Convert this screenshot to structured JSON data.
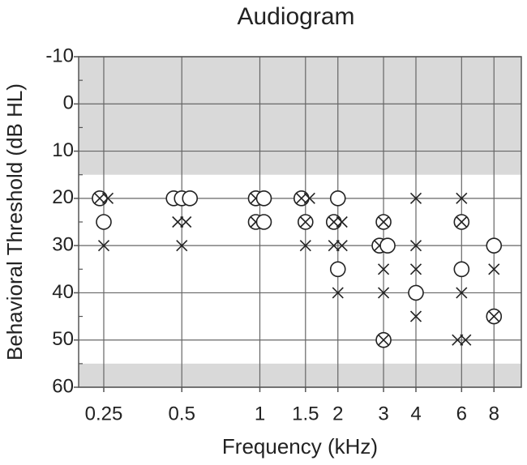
{
  "chart_data": {
    "type": "scatter",
    "title": "Audiogram",
    "x_label": "Frequency (kHz)",
    "y_label": "Behavioral Threshold (dB HL)",
    "xlim": [
      0.2,
      10.2
    ],
    "xscale": "log",
    "xticks": [
      0.25,
      0.5,
      1,
      1.5,
      2,
      3,
      4,
      6,
      8
    ],
    "ylim": [
      -10,
      60
    ],
    "y_inverted": true,
    "yticks": [
      -10,
      0,
      10,
      20,
      30,
      40,
      50,
      60
    ],
    "yminorticks": [
      -5,
      5,
      15,
      25,
      35,
      45,
      55
    ],
    "grid": true,
    "shaded_ranges": [
      [
        -10,
        15
      ],
      [
        55,
        60
      ]
    ],
    "shade_color": "#d9d9d9",
    "series": [
      {
        "marker": "circle-cross",
        "color": "#222222",
        "x": [
          0.25,
          1,
          1,
          1.5,
          1.5,
          2,
          3,
          3,
          3,
          6,
          8
        ],
        "values": [
          20,
          20,
          25,
          20,
          25,
          25,
          25,
          30,
          50,
          25,
          45
        ]
      },
      {
        "marker": "circle",
        "color": "#222222",
        "x": [
          0.25,
          0.5,
          0.5,
          0.5,
          1,
          1,
          2,
          2,
          3,
          4,
          6,
          8
        ],
        "values": [
          25,
          20,
          20,
          20,
          20,
          25,
          20,
          35,
          30,
          40,
          35,
          30
        ]
      },
      {
        "marker": "cross",
        "color": "#222222",
        "x": [
          0.25,
          0.25,
          0.5,
          0.5,
          0.5,
          1.5,
          1.5,
          2,
          2,
          2,
          2,
          3,
          3,
          4,
          4,
          4,
          4,
          6,
          6,
          6,
          6,
          8
        ],
        "values": [
          20,
          30,
          25,
          25,
          30,
          20,
          30,
          25,
          30,
          30,
          40,
          35,
          40,
          20,
          30,
          35,
          45,
          20,
          40,
          50,
          50,
          35
        ]
      }
    ]
  }
}
